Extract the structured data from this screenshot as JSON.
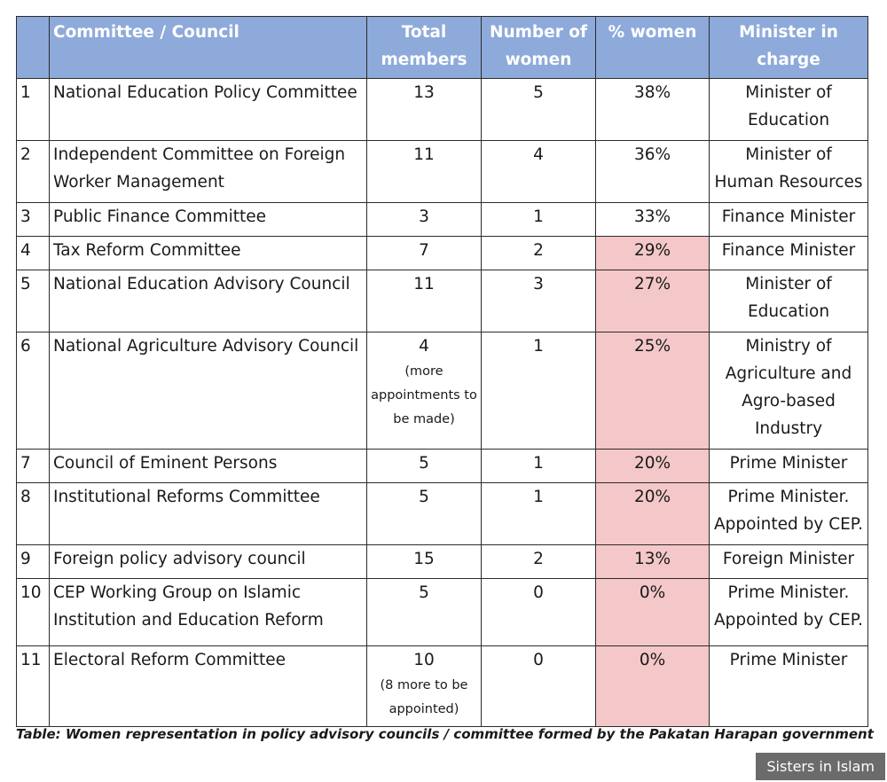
{
  "table": {
    "headers": [
      "",
      "Committee / Council",
      "Total members",
      "Number of women",
      "% women",
      "Minister in charge"
    ],
    "rows": [
      {
        "no": "1",
        "name": "National Education Policy Committee",
        "total": "13",
        "total_note": "",
        "women": "5",
        "pct": "38%",
        "minister": "Minister of Education",
        "highlight": false
      },
      {
        "no": "2",
        "name": "Independent Committee on Foreign Worker Management",
        "total": "11",
        "total_note": "",
        "women": "4",
        "pct": "36%",
        "minister": "Minister of Human Resources",
        "highlight": false
      },
      {
        "no": "3",
        "name": "Public Finance Committee",
        "total": "3",
        "total_note": "",
        "women": "1",
        "pct": "33%",
        "minister": "Finance Minister",
        "highlight": false
      },
      {
        "no": "4",
        "name": "Tax Reform Committee",
        "total": "7",
        "total_note": "",
        "women": "2",
        "pct": "29%",
        "minister": "Finance Minister",
        "highlight": true
      },
      {
        "no": "5",
        "name": "National Education Advisory Council",
        "total": "11",
        "total_note": "",
        "women": "3",
        "pct": "27%",
        "minister": "Minister of Education",
        "highlight": true
      },
      {
        "no": "6",
        "name": "National Agriculture Advisory Council",
        "total": "4",
        "total_note": "(more appointments to be made)",
        "women": "1",
        "pct": "25%",
        "minister": "Ministry of Agriculture and Agro-based Industry",
        "highlight": true
      },
      {
        "no": "7",
        "name": "Council of Eminent Persons",
        "total": "5",
        "total_note": "",
        "women": "1",
        "pct": "20%",
        "minister": "Prime Minister",
        "highlight": true
      },
      {
        "no": "8",
        "name": "Institutional Reforms Committee",
        "total": "5",
        "total_note": "",
        "women": "1",
        "pct": "20%",
        "minister": "Prime Minister. Appointed by CEP.",
        "highlight": true
      },
      {
        "no": "9",
        "name": "Foreign policy advisory council",
        "total": "15",
        "total_note": "",
        "women": "2",
        "pct": "13%",
        "minister": "Foreign Minister",
        "highlight": true
      },
      {
        "no": "10",
        "name": "CEP Working Group on Islamic Institution and Education Reform",
        "total": "5",
        "total_note": "",
        "women": "0",
        "pct": "0%",
        "minister": "Prime Minister. Appointed by CEP.",
        "highlight": true
      },
      {
        "no": "11",
        "name": "Electoral Reform Committee",
        "total": "10",
        "total_note": "(8 more to be appointed)",
        "women": "0",
        "pct": "0%",
        "minister": "Prime Minister",
        "highlight": true
      }
    ]
  },
  "caption": "Table: Women representation in policy advisory councils / committee formed by the Pakatan Harapan government",
  "watermark": "Sisters in Islam",
  "colors": {
    "header_bg": "#8eaadb",
    "highlight_bg": "#f4c7c8"
  }
}
